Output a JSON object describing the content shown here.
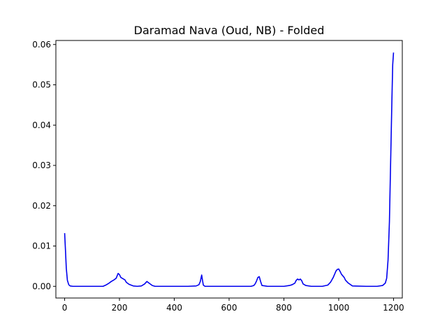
{
  "chart_data": {
    "type": "line",
    "title": "Daramad Nava (Oud, NB) - Folded",
    "xlabel": "",
    "ylabel": "",
    "xlim": [
      -32,
      1232
    ],
    "ylim": [
      -0.0029,
      0.061
    ],
    "grid": false,
    "x_ticks": [
      0,
      200,
      400,
      600,
      800,
      1000,
      1200
    ],
    "x_tick_labels": [
      "0",
      "200",
      "400",
      "600",
      "800",
      "1000",
      "1200"
    ],
    "y_ticks": [
      0.0,
      0.01,
      0.02,
      0.03,
      0.04,
      0.05,
      0.06
    ],
    "y_tick_labels": [
      "0.00",
      "0.01",
      "0.02",
      "0.03",
      "0.04",
      "0.05",
      "0.06"
    ],
    "series": [
      {
        "color": "#0000ee",
        "x": [
          0,
          3,
          6,
          10,
          15,
          20,
          30,
          50,
          80,
          100,
          120,
          140,
          150,
          160,
          170,
          180,
          188,
          195,
          200,
          205,
          210,
          220,
          225,
          235,
          250,
          265,
          280,
          292,
          300,
          310,
          320,
          330,
          350,
          400,
          450,
          480,
          490,
          495,
          500,
          503,
          506,
          512,
          520,
          550,
          600,
          650,
          680,
          690,
          695,
          700,
          705,
          710,
          715,
          720,
          740,
          780,
          800,
          820,
          830,
          840,
          845,
          850,
          855,
          860,
          865,
          870,
          880,
          900,
          940,
          960,
          970,
          980,
          985,
          990,
          995,
          1000,
          1005,
          1010,
          1020,
          1025,
          1035,
          1050,
          1100,
          1140,
          1160,
          1170,
          1175,
          1180,
          1185,
          1188,
          1191,
          1194,
          1197,
          1200
        ],
        "y": [
          0.0132,
          0.009,
          0.0045,
          0.0015,
          0.0004,
          0.0001,
          0.0,
          0.0,
          0.0,
          0.0,
          0.0,
          0.0,
          0.0003,
          0.0007,
          0.0012,
          0.0016,
          0.002,
          0.0032,
          0.0029,
          0.0022,
          0.002,
          0.0016,
          0.001,
          0.0005,
          0.0001,
          0.0,
          0.0001,
          0.0006,
          0.0012,
          0.0007,
          0.0002,
          0.0,
          0.0,
          0.0,
          0.0,
          0.0001,
          0.0004,
          0.0012,
          0.0028,
          0.0015,
          0.0003,
          0.0,
          0.0,
          0.0,
          0.0,
          0.0,
          0.0,
          0.0002,
          0.0006,
          0.0013,
          0.0022,
          0.0024,
          0.0012,
          0.0002,
          0.0,
          0.0,
          0.0,
          0.0002,
          0.0004,
          0.0008,
          0.0015,
          0.0018,
          0.0016,
          0.0018,
          0.0014,
          0.0006,
          0.0002,
          0.0,
          0.0,
          0.0003,
          0.001,
          0.0022,
          0.003,
          0.0038,
          0.0042,
          0.0043,
          0.0037,
          0.003,
          0.0022,
          0.0015,
          0.0008,
          0.0001,
          0.0,
          0.0,
          0.0002,
          0.0008,
          0.002,
          0.0065,
          0.016,
          0.026,
          0.036,
          0.046,
          0.055,
          0.058
        ]
      }
    ]
  }
}
